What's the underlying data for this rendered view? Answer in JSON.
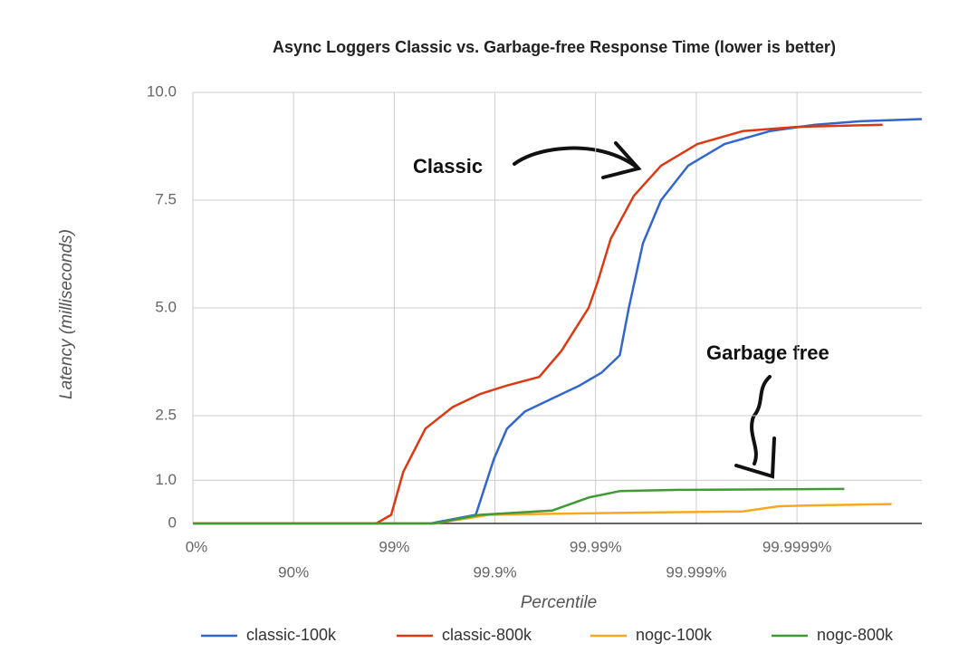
{
  "chart_data": {
    "type": "line",
    "title": "Async Loggers Classic vs. Garbage-free Response Time (lower is better)",
    "x_label": "Percentile",
    "y_label": "Latency (milliseconds)",
    "xlim": [
      0,
      7.24
    ],
    "ylim": [
      0,
      10
    ],
    "xticks": [
      {
        "value": 0,
        "label": "0%"
      },
      {
        "value": 1,
        "label": "90%"
      },
      {
        "value": 2,
        "label": "99%"
      },
      {
        "value": 3,
        "label": "99.9%"
      },
      {
        "value": 4,
        "label": "99.99%"
      },
      {
        "value": 5,
        "label": "99.999%"
      },
      {
        "value": 6,
        "label": "99.9999%"
      }
    ],
    "yticks": [
      0,
      {
        "value": 1,
        "label": "1.0"
      },
      2.5,
      {
        "value": 5,
        "label": "5.0"
      },
      7.5,
      {
        "value": 10,
        "label": "10.0"
      }
    ],
    "grid": true,
    "legend": "bottom",
    "annotations": [
      "Classic",
      "Garbage free"
    ],
    "series": [
      {
        "name": "classic-100k",
        "color": "#3366cc",
        "x": [
          0,
          2.36,
          2.81,
          2.99,
          3.12,
          3.3,
          3.57,
          3.84,
          4.06,
          4.24,
          4.33,
          4.47,
          4.65,
          4.92,
          5.28,
          5.73,
          6.18,
          6.63,
          7.24
        ],
        "values": [
          0,
          0,
          0.2,
          1.5,
          2.2,
          2.6,
          2.9,
          3.2,
          3.5,
          3.9,
          5.0,
          6.5,
          7.5,
          8.3,
          8.8,
          9.1,
          9.25,
          9.33,
          9.38
        ]
      },
      {
        "name": "classic-800k",
        "color": "#dc3912",
        "x": [
          0,
          1.82,
          1.97,
          2.09,
          2.31,
          2.58,
          2.85,
          3.12,
          3.44,
          3.66,
          3.93,
          4.02,
          4.15,
          4.38,
          4.65,
          5.01,
          5.46,
          6.0,
          6.85
        ],
        "values": [
          0,
          0,
          0.2,
          1.2,
          2.2,
          2.7,
          3.0,
          3.2,
          3.4,
          4.0,
          5.0,
          5.6,
          6.6,
          7.6,
          8.3,
          8.8,
          9.1,
          9.2,
          9.25
        ]
      },
      {
        "name": "nogc-100k",
        "color": "#f4a925",
        "x": [
          0,
          2.4,
          2.94,
          3.48,
          4.38,
          5.46,
          5.82,
          6.18,
          6.94
        ],
        "values": [
          0,
          0,
          0.2,
          0.22,
          0.25,
          0.28,
          0.4,
          0.42,
          0.45
        ]
      },
      {
        "name": "nogc-800k",
        "color": "#3f9a35",
        "x": [
          0,
          2.4,
          2.85,
          3.21,
          3.57,
          3.93,
          4.24,
          4.83,
          6.47
        ],
        "values": [
          0,
          0,
          0.2,
          0.25,
          0.3,
          0.6,
          0.75,
          0.78,
          0.8
        ]
      }
    ]
  }
}
